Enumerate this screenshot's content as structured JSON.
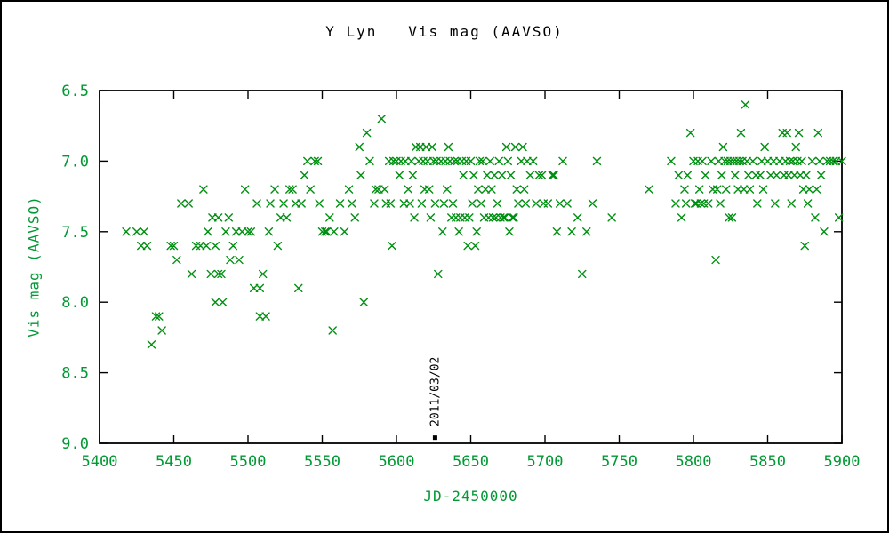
{
  "title": "Y Lyn   Vis mag (AAVSO)",
  "colors": {
    "marker": "#008f11",
    "axis_text": "#009933",
    "axis_line": "#000000",
    "annotation": "#000000",
    "background": "#ffffff"
  },
  "chart_data": {
    "type": "scatter",
    "title": "Y Lyn   Vis mag (AAVSO)",
    "xlabel": "JD-2450000",
    "ylabel": "Vis mag (AAVSO)",
    "xlim": [
      5400,
      5900
    ],
    "ylim": [
      6.5,
      9.0
    ],
    "y_inverted": true,
    "xticks": [
      5400,
      5450,
      5500,
      5550,
      5600,
      5650,
      5700,
      5750,
      5800,
      5850,
      5900
    ],
    "ytick_labels": [
      "6.5",
      "7.0",
      "7.5",
      "8.0",
      "8.5",
      "9.0"
    ],
    "yticks": [
      6.5,
      7.0,
      7.5,
      8.0,
      8.5,
      9.0
    ],
    "grid": false,
    "legend": null,
    "marker": "x",
    "annotations": [
      {
        "text": "2011/03/02",
        "x": 5626,
        "y": 8.88,
        "rotation": -90,
        "marker": {
          "x": 5626,
          "y": 8.96,
          "shape": "square"
        }
      }
    ],
    "series": [
      {
        "name": "Vis mag (AAVSO)",
        "points": [
          [
            5418,
            7.5
          ],
          [
            5425,
            7.5
          ],
          [
            5428,
            7.6
          ],
          [
            5430,
            7.5
          ],
          [
            5432,
            7.6
          ],
          [
            5435,
            8.3
          ],
          [
            5438,
            8.1
          ],
          [
            5440,
            8.1
          ],
          [
            5442,
            8.2
          ],
          [
            5448,
            7.6
          ],
          [
            5450,
            7.6
          ],
          [
            5452,
            7.7
          ],
          [
            5455,
            7.3
          ],
          [
            5460,
            7.3
          ],
          [
            5462,
            7.8
          ],
          [
            5465,
            7.6
          ],
          [
            5468,
            7.6
          ],
          [
            5470,
            7.2
          ],
          [
            5472,
            7.6
          ],
          [
            5473,
            7.5
          ],
          [
            5475,
            7.8
          ],
          [
            5476,
            7.4
          ],
          [
            5478,
            7.6
          ],
          [
            5478,
            8.0
          ],
          [
            5480,
            7.8
          ],
          [
            5480,
            7.4
          ],
          [
            5482,
            7.8
          ],
          [
            5483,
            8.0
          ],
          [
            5485,
            7.5
          ],
          [
            5487,
            7.4
          ],
          [
            5488,
            7.7
          ],
          [
            5490,
            7.6
          ],
          [
            5492,
            7.5
          ],
          [
            5494,
            7.7
          ],
          [
            5496,
            7.5
          ],
          [
            5498,
            7.2
          ],
          [
            5500,
            7.5
          ],
          [
            5502,
            7.5
          ],
          [
            5504,
            7.9
          ],
          [
            5506,
            7.3
          ],
          [
            5508,
            7.9
          ],
          [
            5508,
            8.1
          ],
          [
            5510,
            7.8
          ],
          [
            5512,
            8.1
          ],
          [
            5512,
            8.1
          ],
          [
            5514,
            7.5
          ],
          [
            5515,
            7.3
          ],
          [
            5518,
            7.2
          ],
          [
            5520,
            7.6
          ],
          [
            5522,
            7.4
          ],
          [
            5524,
            7.3
          ],
          [
            5526,
            7.4
          ],
          [
            5528,
            7.2
          ],
          [
            5530,
            7.2
          ],
          [
            5532,
            7.3
          ],
          [
            5534,
            7.9
          ],
          [
            5536,
            7.3
          ],
          [
            5538,
            7.1
          ],
          [
            5540,
            7.0
          ],
          [
            5542,
            7.2
          ],
          [
            5545,
            7.0
          ],
          [
            5547,
            7.0
          ],
          [
            5548,
            7.3
          ],
          [
            5550,
            7.5
          ],
          [
            5552,
            7.5
          ],
          [
            5553,
            7.5
          ],
          [
            5555,
            7.4
          ],
          [
            5557,
            8.2
          ],
          [
            5558,
            7.5
          ],
          [
            5562,
            7.3
          ],
          [
            5565,
            7.5
          ],
          [
            5568,
            7.2
          ],
          [
            5570,
            7.3
          ],
          [
            5572,
            7.4
          ],
          [
            5575,
            6.9
          ],
          [
            5576,
            7.1
          ],
          [
            5578,
            8.0
          ],
          [
            5580,
            6.8
          ],
          [
            5582,
            7.0
          ],
          [
            5585,
            7.3
          ],
          [
            5586,
            7.2
          ],
          [
            5588,
            7.2
          ],
          [
            5590,
            6.7
          ],
          [
            5592,
            7.2
          ],
          [
            5593,
            7.3
          ],
          [
            5595,
            7.0
          ],
          [
            5596,
            7.3
          ],
          [
            5597,
            7.6
          ],
          [
            5598,
            7.0
          ],
          [
            5600,
            7.0
          ],
          [
            5602,
            7.1
          ],
          [
            5603,
            7.0
          ],
          [
            5605,
            7.3
          ],
          [
            5606,
            7.0
          ],
          [
            5608,
            7.2
          ],
          [
            5609,
            7.3
          ],
          [
            5610,
            7.0
          ],
          [
            5611,
            7.1
          ],
          [
            5612,
            7.4
          ],
          [
            5613,
            6.9
          ],
          [
            5615,
            7.0
          ],
          [
            5616,
            6.9
          ],
          [
            5617,
            7.3
          ],
          [
            5618,
            7.0
          ],
          [
            5619,
            7.2
          ],
          [
            5620,
            6.9
          ],
          [
            5621,
            7.0
          ],
          [
            5622,
            7.2
          ],
          [
            5623,
            7.4
          ],
          [
            5624,
            6.9
          ],
          [
            5625,
            7.0
          ],
          [
            5626,
            7.3
          ],
          [
            5627,
            7.0
          ],
          [
            5628,
            7.8
          ],
          [
            5630,
            7.0
          ],
          [
            5631,
            7.5
          ],
          [
            5632,
            7.3
          ],
          [
            5633,
            7.0
          ],
          [
            5634,
            7.2
          ],
          [
            5635,
            6.9
          ],
          [
            5636,
            7.0
          ],
          [
            5637,
            7.4
          ],
          [
            5638,
            7.3
          ],
          [
            5639,
            7.0
          ],
          [
            5640,
            7.4
          ],
          [
            5641,
            7.0
          ],
          [
            5642,
            7.5
          ],
          [
            5643,
            7.4
          ],
          [
            5644,
            7.0
          ],
          [
            5645,
            7.1
          ],
          [
            5646,
            7.4
          ],
          [
            5647,
            7.0
          ],
          [
            5648,
            7.6
          ],
          [
            5649,
            7.4
          ],
          [
            5650,
            7.0
          ],
          [
            5651,
            7.3
          ],
          [
            5652,
            7.1
          ],
          [
            5653,
            7.6
          ],
          [
            5654,
            7.5
          ],
          [
            5655,
            7.2
          ],
          [
            5656,
            7.0
          ],
          [
            5657,
            7.3
          ],
          [
            5658,
            7.0
          ],
          [
            5659,
            7.4
          ],
          [
            5660,
            7.2
          ],
          [
            5661,
            7.1
          ],
          [
            5662,
            7.4
          ],
          [
            5663,
            7.0
          ],
          [
            5664,
            7.2
          ],
          [
            5665,
            7.4
          ],
          [
            5666,
            7.1
          ],
          [
            5667,
            7.4
          ],
          [
            5668,
            7.3
          ],
          [
            5669,
            7.0
          ],
          [
            5670,
            7.4
          ],
          [
            5671,
            7.1
          ],
          [
            5672,
            7.4
          ],
          [
            5673,
            7.4
          ],
          [
            5674,
            6.9
          ],
          [
            5675,
            7.0
          ],
          [
            5676,
            7.5
          ],
          [
            5677,
            7.1
          ],
          [
            5678,
            7.4
          ],
          [
            5679,
            7.4
          ],
          [
            5680,
            6.9
          ],
          [
            5681,
            7.2
          ],
          [
            5682,
            7.3
          ],
          [
            5684,
            7.0
          ],
          [
            5685,
            6.9
          ],
          [
            5686,
            7.2
          ],
          [
            5687,
            7.3
          ],
          [
            5688,
            7.0
          ],
          [
            5690,
            7.1
          ],
          [
            5692,
            7.0
          ],
          [
            5694,
            7.3
          ],
          [
            5696,
            7.1
          ],
          [
            5698,
            7.1
          ],
          [
            5699,
            7.3
          ],
          [
            5702,
            7.3
          ],
          [
            5705,
            7.1
          ],
          [
            5706,
            7.1
          ],
          [
            5708,
            7.5
          ],
          [
            5710,
            7.3
          ],
          [
            5712,
            7.0
          ],
          [
            5715,
            7.3
          ],
          [
            5718,
            7.5
          ],
          [
            5722,
            7.4
          ],
          [
            5725,
            7.8
          ],
          [
            5728,
            7.5
          ],
          [
            5732,
            7.3
          ],
          [
            5735,
            7.0
          ],
          [
            5745,
            7.4
          ],
          [
            5770,
            7.2
          ],
          [
            5785,
            7.0
          ],
          [
            5788,
            7.3
          ],
          [
            5790,
            7.1
          ],
          [
            5792,
            7.4
          ],
          [
            5794,
            7.2
          ],
          [
            5795,
            7.3
          ],
          [
            5796,
            7.1
          ],
          [
            5798,
            6.8
          ],
          [
            5800,
            7.0
          ],
          [
            5801,
            7.3
          ],
          [
            5802,
            7.3
          ],
          [
            5803,
            7.0
          ],
          [
            5804,
            7.2
          ],
          [
            5805,
            7.3
          ],
          [
            5806,
            7.0
          ],
          [
            5807,
            7.3
          ],
          [
            5808,
            7.1
          ],
          [
            5810,
            7.3
          ],
          [
            5812,
            7.0
          ],
          [
            5813,
            7.2
          ],
          [
            5815,
            7.7
          ],
          [
            5816,
            7.2
          ],
          [
            5817,
            7.0
          ],
          [
            5818,
            7.3
          ],
          [
            5819,
            7.1
          ],
          [
            5820,
            6.9
          ],
          [
            5821,
            7.0
          ],
          [
            5822,
            7.2
          ],
          [
            5823,
            7.0
          ],
          [
            5824,
            7.4
          ],
          [
            5825,
            7.0
          ],
          [
            5826,
            7.4
          ],
          [
            5827,
            7.0
          ],
          [
            5828,
            7.1
          ],
          [
            5829,
            7.0
          ],
          [
            5830,
            7.2
          ],
          [
            5831,
            7.0
          ],
          [
            5832,
            6.8
          ],
          [
            5833,
            7.0
          ],
          [
            5834,
            7.2
          ],
          [
            5835,
            6.6
          ],
          [
            5836,
            7.0
          ],
          [
            5837,
            7.1
          ],
          [
            5838,
            7.2
          ],
          [
            5840,
            7.0
          ],
          [
            5842,
            7.1
          ],
          [
            5843,
            7.3
          ],
          [
            5845,
            7.1
          ],
          [
            5846,
            7.0
          ],
          [
            5847,
            7.2
          ],
          [
            5848,
            6.9
          ],
          [
            5850,
            7.0
          ],
          [
            5852,
            7.1
          ],
          [
            5854,
            7.0
          ],
          [
            5855,
            7.3
          ],
          [
            5856,
            7.1
          ],
          [
            5858,
            7.0
          ],
          [
            5860,
            6.8
          ],
          [
            5861,
            7.1
          ],
          [
            5862,
            7.0
          ],
          [
            5863,
            6.8
          ],
          [
            5864,
            7.1
          ],
          [
            5865,
            7.0
          ],
          [
            5866,
            7.3
          ],
          [
            5867,
            7.0
          ],
          [
            5868,
            7.1
          ],
          [
            5869,
            6.9
          ],
          [
            5870,
            7.0
          ],
          [
            5871,
            6.8
          ],
          [
            5872,
            7.1
          ],
          [
            5873,
            7.0
          ],
          [
            5874,
            7.2
          ],
          [
            5875,
            7.6
          ],
          [
            5876,
            7.1
          ],
          [
            5877,
            7.3
          ],
          [
            5878,
            7.2
          ],
          [
            5880,
            7.0
          ],
          [
            5882,
            7.4
          ],
          [
            5883,
            7.2
          ],
          [
            5884,
            6.8
          ],
          [
            5885,
            7.0
          ],
          [
            5886,
            7.1
          ],
          [
            5888,
            7.5
          ],
          [
            5890,
            7.0
          ],
          [
            5892,
            7.0
          ],
          [
            5894,
            7.0
          ],
          [
            5896,
            7.0
          ],
          [
            5898,
            7.4
          ],
          [
            5900,
            7.0
          ]
        ]
      }
    ]
  }
}
